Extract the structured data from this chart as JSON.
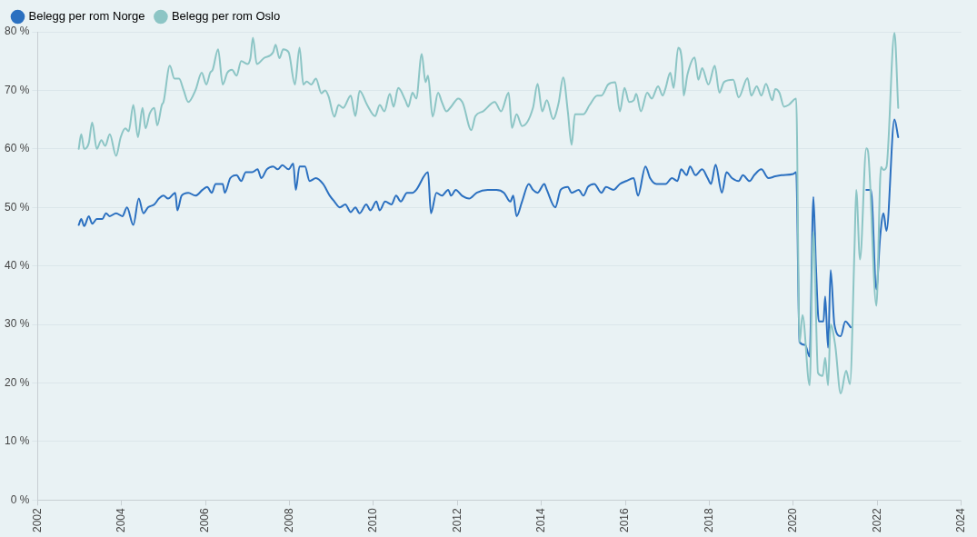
{
  "chart_data": {
    "type": "line",
    "xlim": [
      2002,
      2024
    ],
    "xticks": [
      2002,
      2004,
      2006,
      2008,
      2010,
      2012,
      2014,
      2016,
      2018,
      2020,
      2022,
      2024
    ],
    "ylim": [
      0,
      80
    ],
    "yticks": [
      {
        "value": 0,
        "label": "0 %"
      },
      {
        "value": 10,
        "label": "10 %"
      },
      {
        "value": 20,
        "label": "20 %"
      },
      {
        "value": 30,
        "label": "30 %"
      },
      {
        "value": 40,
        "label": "40 %"
      },
      {
        "value": 50,
        "label": "50 %"
      },
      {
        "value": 60,
        "label": "60 %"
      },
      {
        "value": 70,
        "label": "70 %"
      },
      {
        "value": 80,
        "label": "80 %"
      }
    ],
    "grid": "y",
    "legend": "top left",
    "marker": "none",
    "line_style": "solid",
    "series": [
      {
        "name": "Belegg per rom Norge",
        "color": "#2b70c0",
        "x": [
          2002.98,
          2003.04,
          2003.11,
          2003.22,
          2003.3,
          2003.41,
          2003.54,
          2003.63,
          2003.72,
          2003.87,
          2004.02,
          2004.13,
          2004.28,
          2004.41,
          2004.52,
          2004.63,
          2004.78,
          2004.89,
          2005.0,
          2005.11,
          2005.28,
          2005.33,
          2005.43,
          2005.59,
          2005.76,
          2005.93,
          2006.04,
          2006.15,
          2006.24,
          2006.41,
          2006.46,
          2006.59,
          2006.74,
          2006.85,
          2006.96,
          2007.11,
          2007.24,
          2007.33,
          2007.46,
          2007.61,
          2007.72,
          2007.83,
          2007.98,
          2008.09,
          2008.15,
          2008.24,
          2008.37,
          2008.48,
          2008.63,
          2008.8,
          2008.96,
          2009.07,
          2009.2,
          2009.33,
          2009.46,
          2009.57,
          2009.67,
          2009.83,
          2009.93,
          2010.07,
          2010.15,
          2010.28,
          2010.43,
          2010.54,
          2010.65,
          2010.8,
          2010.93,
          2011.02,
          2011.3,
          2011.37,
          2011.5,
          2011.63,
          2011.78,
          2011.85,
          2011.96,
          2012.11,
          2012.28,
          2012.46,
          2012.72,
          2012.93,
          2013.11,
          2013.26,
          2013.33,
          2013.41,
          2013.54,
          2013.7,
          2013.8,
          2013.91,
          2014.07,
          2014.13,
          2014.33,
          2014.46,
          2014.63,
          2014.72,
          2014.89,
          2015.0,
          2015.11,
          2015.26,
          2015.43,
          2015.54,
          2015.72,
          2015.87,
          2016.02,
          2016.2,
          2016.3,
          2016.48,
          2016.59,
          2016.74,
          2016.96,
          2017.11,
          2017.24,
          2017.33,
          2017.46,
          2017.54,
          2017.67,
          2017.83,
          2017.96,
          2018.04,
          2018.15,
          2018.3,
          2018.41,
          2018.54,
          2018.7,
          2018.8,
          2018.96,
          2019.07,
          2019.24,
          2019.41,
          2019.57,
          2019.72,
          2020.0,
          2020.07,
          2020.15,
          2020.28,
          2020.39,
          2020.48,
          2020.54,
          2020.61,
          2020.72,
          2020.76,
          2020.83,
          2020.89,
          2020.98,
          2021.13,
          2021.24,
          2021.37,
          2021.55,
          2021.74,
          2021.85,
          2021.98,
          2022.07,
          2022.15,
          2022.22,
          2022.41,
          2022.5
        ],
        "values": [
          47,
          48,
          46.8,
          48.5,
          47.2,
          48,
          48,
          49,
          48.5,
          49,
          48.5,
          50,
          47,
          51.5,
          49,
          50,
          50.5,
          51.5,
          52,
          51.5,
          52.5,
          49.5,
          52,
          52.5,
          52,
          53,
          53.5,
          52.5,
          54,
          54,
          52.5,
          55,
          55.5,
          54.5,
          56,
          56,
          56.5,
          55,
          56.5,
          57,
          56.5,
          57.2,
          56.5,
          57.5,
          53,
          57,
          57,
          54.5,
          55,
          54,
          52,
          51,
          50,
          50.5,
          49.2,
          50,
          49,
          50.5,
          49.5,
          51,
          49.5,
          51,
          50.5,
          52,
          51,
          52.5,
          52.5,
          53,
          56,
          49,
          52.5,
          52,
          53,
          52,
          53,
          52,
          51.5,
          52.5,
          53,
          53,
          52.5,
          51,
          52,
          48.5,
          51,
          54,
          53,
          52.5,
          54,
          53,
          50,
          53,
          53.5,
          52.5,
          53,
          52,
          53.5,
          54,
          52.5,
          53.5,
          53,
          54,
          54.5,
          55,
          52,
          57,
          55,
          54,
          54,
          55,
          54.5,
          56.5,
          55.5,
          57,
          55.5,
          56.5,
          55,
          54,
          57.3,
          52.5,
          56,
          55,
          54.5,
          55.5,
          54.5,
          55.5,
          56.5,
          55,
          55.3,
          55.5,
          55.7,
          56,
          27,
          26.5,
          24.5,
          51.8,
          40,
          30.5,
          30.5,
          34.8,
          26,
          39.3,
          30,
          28,
          30.5,
          29.5,
          null,
          53,
          53,
          36,
          45,
          49,
          46,
          65,
          62
        ]
      },
      {
        "name": "Belegg per rom Oslo",
        "color": "#8cc5c5",
        "x": [
          2002.98,
          2003.04,
          2003.11,
          2003.22,
          2003.3,
          2003.41,
          2003.52,
          2003.61,
          2003.72,
          2003.87,
          2003.98,
          2004.09,
          2004.17,
          2004.28,
          2004.39,
          2004.5,
          2004.57,
          2004.67,
          2004.78,
          2004.85,
          2004.96,
          2005.0,
          2005.15,
          2005.26,
          2005.37,
          2005.48,
          2005.59,
          2005.76,
          2005.91,
          2006.02,
          2006.11,
          2006.17,
          2006.3,
          2006.41,
          2006.52,
          2006.63,
          2006.74,
          2006.85,
          2007.0,
          2007.07,
          2007.13,
          2007.22,
          2007.39,
          2007.61,
          2007.67,
          2007.76,
          2007.85,
          2007.98,
          2008.13,
          2008.24,
          2008.33,
          2008.41,
          2008.52,
          2008.63,
          2008.76,
          2008.85,
          2008.93,
          2009.07,
          2009.17,
          2009.28,
          2009.46,
          2009.57,
          2009.67,
          2009.85,
          2010.04,
          2010.15,
          2010.26,
          2010.39,
          2010.48,
          2010.59,
          2010.76,
          2010.83,
          2010.93,
          2011.02,
          2011.15,
          2011.24,
          2011.3,
          2011.41,
          2011.54,
          2011.63,
          2011.74,
          2011.85,
          2012.02,
          2012.13,
          2012.33,
          2012.43,
          2012.61,
          2012.89,
          2013.04,
          2013.22,
          2013.3,
          2013.41,
          2013.54,
          2013.8,
          2013.91,
          2014.02,
          2014.13,
          2014.28,
          2014.41,
          2014.52,
          2014.63,
          2014.72,
          2014.8,
          2015.0,
          2015.15,
          2015.33,
          2015.43,
          2015.59,
          2015.76,
          2015.87,
          2015.98,
          2016.09,
          2016.2,
          2016.26,
          2016.37,
          2016.52,
          2016.63,
          2016.78,
          2016.89,
          2016.96,
          2017.07,
          2017.15,
          2017.26,
          2017.35,
          2017.39,
          2017.48,
          2017.65,
          2017.74,
          2017.83,
          2017.98,
          2018.13,
          2018.24,
          2018.35,
          2018.57,
          2018.7,
          2018.91,
          2019.0,
          2019.13,
          2019.24,
          2019.35,
          2019.5,
          2019.57,
          2019.67,
          2019.78,
          2019.89,
          2020.07,
          2020.15,
          2020.22,
          2020.39,
          2020.48,
          2020.59,
          2020.7,
          2020.76,
          2020.83,
          2020.89,
          2021.0,
          2021.13,
          2021.26,
          2021.35,
          2021.46,
          2021.5,
          2021.59,
          2021.74,
          2021.78,
          2021.98,
          2022.09,
          2022.15,
          2022.22,
          2022.41,
          2022.5
        ],
        "values": [
          60,
          62.5,
          60,
          61,
          64.5,
          60,
          61.5,
          60.5,
          62.5,
          58.8,
          62,
          63.5,
          63,
          67.5,
          62,
          67,
          63.5,
          66,
          67,
          64,
          67.5,
          68,
          74.2,
          72,
          72,
          70,
          68,
          70,
          73,
          71,
          73,
          73.5,
          77,
          71,
          73,
          73.5,
          72.5,
          75,
          74.5,
          75.5,
          79,
          74.5,
          75.5,
          76.5,
          77.8,
          75.5,
          77,
          76.5,
          71,
          77.3,
          71,
          71.5,
          71,
          72,
          69.5,
          70,
          69,
          65.5,
          67.5,
          67,
          69.1,
          65.6,
          69.9,
          67.5,
          65.6,
          67.5,
          66.4,
          69.4,
          67.2,
          70.4,
          68.3,
          67.2,
          69.6,
          68.6,
          76.2,
          71.4,
          72.5,
          65.5,
          69.6,
          68,
          66.4,
          67.2,
          68.6,
          67.8,
          63.2,
          65.6,
          66.4,
          68,
          66.4,
          69.6,
          63.6,
          65.9,
          63.9,
          67,
          71.1,
          66.4,
          68.3,
          65.1,
          67.8,
          72.2,
          66.4,
          60.7,
          65.9,
          65.9,
          67.5,
          69.1,
          69.1,
          71,
          71.4,
          66.4,
          70.4,
          68,
          68.3,
          69.4,
          66.4,
          69.6,
          68.6,
          70.7,
          69.1,
          70.4,
          73,
          70.4,
          77.3,
          74.9,
          69.1,
          72.7,
          75.6,
          71.8,
          73.8,
          71,
          74.2,
          69.6,
          71.4,
          71.8,
          68.8,
          72.1,
          69.1,
          70.7,
          69.1,
          71.1,
          68.3,
          70.2,
          69.6,
          67.2,
          67.5,
          68.6,
          26.9,
          31.6,
          19.6,
          45.8,
          21.7,
          21.2,
          24.3,
          19.6,
          30,
          26.4,
          18.2,
          22.1,
          19.8,
          43.3,
          53,
          41.1,
          60.1,
          59.6,
          33.2,
          56.9,
          56.4,
          56.9,
          79.8,
          67
        ]
      }
    ]
  }
}
